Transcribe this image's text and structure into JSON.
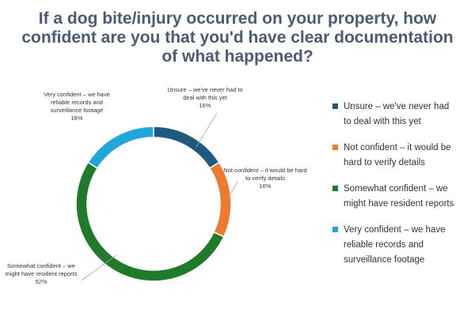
{
  "title_lines": [
    "If a dog bite/injury occurred on your property, how",
    "confident are you that you'd have clear documentation",
    "of what happened?"
  ],
  "colors": {
    "title": "#4a5b73",
    "unsure": "#1f5a7e",
    "not_confident": "#ee7a2e",
    "somewhat": "#1f7a2a",
    "very": "#1fa6dc"
  },
  "chart_data": {
    "type": "pie",
    "donut": true,
    "title": "If a dog bite/injury occurred on your property, how confident are you that you'd have clear documentation of what happened?",
    "legend_position": "right",
    "slices": [
      {
        "name": "Unsure – we've never had to deal with this yet",
        "value": 16,
        "percent_label": "16%",
        "color": "#1f5a7e",
        "label_lines": [
          "Unsure – we've never had to",
          "deal with this yet"
        ],
        "legend_lines": [
          "Unsure – we've never had",
          "to deal with this yet"
        ]
      },
      {
        "name": "Not confident – it would be hard to verify details",
        "value": 16,
        "percent_label": "16%",
        "color": "#ee7a2e",
        "label_lines": [
          "Not confident – it would be hard",
          "to verify details"
        ],
        "legend_lines": [
          "Not confident – it would be",
          "hard to verify details"
        ]
      },
      {
        "name": "Somewhat confident – we might have resident reports",
        "value": 52,
        "percent_label": "52%",
        "color": "#1f7a2a",
        "label_lines": [
          "Somewhat confident – we",
          "might have resident reports"
        ],
        "legend_lines": [
          "Somewhat confident – we",
          "might have resident reports"
        ]
      },
      {
        "name": "Very confident – we have reliable records and surveillance footage",
        "value": 16,
        "percent_label": "16%",
        "color": "#1fa6dc",
        "label_lines": [
          "Very confident – we have",
          "reliable records and",
          "surveillance footage"
        ],
        "legend_lines": [
          "Very confident – we have",
          "reliable records and",
          "surveillance footage"
        ]
      }
    ]
  }
}
